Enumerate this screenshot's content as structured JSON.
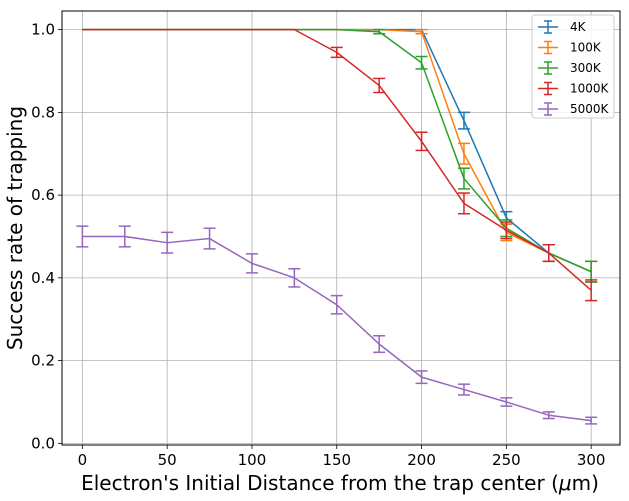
{
  "chart_data": {
    "type": "line",
    "title": "",
    "xlabel_prefix": "Electron's Initial Distance from the trap center (",
    "xlabel_symbol": "μ",
    "xlabel_suffix": "m)",
    "ylabel": "Success rate of trapping",
    "xlim": [
      -12,
      317
    ],
    "ylim": [
      -0.004,
      1.045
    ],
    "xticks": [
      0,
      50,
      100,
      150,
      200,
      250,
      300
    ],
    "yticks": [
      0.0,
      0.2,
      0.4,
      0.6,
      0.8,
      1.0
    ],
    "grid": true,
    "legend_position": "top-right",
    "x": [
      0,
      25,
      50,
      75,
      100,
      125,
      150,
      175,
      200,
      225,
      250,
      275,
      300
    ],
    "series": [
      {
        "name": "4K",
        "color": "#1f77b4",
        "values": [
          1.0,
          1.0,
          1.0,
          1.0,
          1.0,
          1.0,
          1.0,
          1.0,
          1.0,
          0.78,
          0.545,
          0.46,
          0.415
        ],
        "errors": [
          0,
          0,
          0,
          0,
          0,
          0,
          0,
          0,
          0,
          0.02,
          0.015,
          0.02,
          0.025
        ]
      },
      {
        "name": "100K",
        "color": "#ff7f0e",
        "values": [
          1.0,
          1.0,
          1.0,
          1.0,
          1.0,
          1.0,
          1.0,
          1.0,
          0.995,
          0.7,
          0.51,
          0.46,
          0.415
        ],
        "errors": [
          0,
          0,
          0,
          0,
          0,
          0,
          0,
          0,
          0.005,
          0.025,
          0.02,
          0.02,
          0.025
        ]
      },
      {
        "name": "300K",
        "color": "#2ca02c",
        "values": [
          1.0,
          1.0,
          1.0,
          1.0,
          1.0,
          1.0,
          1.0,
          0.995,
          0.92,
          0.64,
          0.52,
          0.46,
          0.415
        ],
        "errors": [
          0,
          0,
          0,
          0,
          0,
          0,
          0,
          0.005,
          0.015,
          0.025,
          0.02,
          0.02,
          0.025
        ]
      },
      {
        "name": "1000K",
        "color": "#d62728",
        "values": [
          1.0,
          1.0,
          1.0,
          1.0,
          1.0,
          1.0,
          0.945,
          0.865,
          0.73,
          0.58,
          0.515,
          0.46,
          0.37
        ],
        "errors": [
          0,
          0,
          0,
          0,
          0,
          0,
          0.012,
          0.017,
          0.022,
          0.025,
          0.02,
          0.02,
          0.025
        ]
      },
      {
        "name": "5000K",
        "color": "#9467bd",
        "values": [
          0.5,
          0.5,
          0.485,
          0.495,
          0.435,
          0.4,
          0.335,
          0.24,
          0.16,
          0.13,
          0.1,
          0.068,
          0.055
        ],
        "errors": [
          0.025,
          0.025,
          0.025,
          0.025,
          0.023,
          0.022,
          0.022,
          0.02,
          0.015,
          0.013,
          0.01,
          0.008,
          0.008
        ]
      }
    ]
  }
}
